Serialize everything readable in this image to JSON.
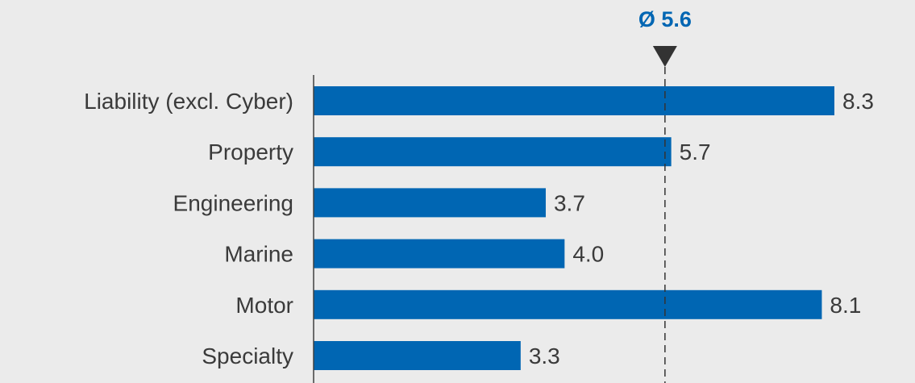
{
  "chart_data": {
    "type": "bar",
    "orientation": "horizontal",
    "categories": [
      "Liability (excl. Cyber)",
      "Property",
      "Engineering",
      "Marine",
      "Motor",
      "Specialty"
    ],
    "values": [
      8.3,
      5.7,
      3.7,
      4.0,
      8.1,
      3.3
    ],
    "value_labels": [
      "8.3",
      "5.7",
      "3.7",
      "4.0",
      "8.1",
      "3.3"
    ],
    "xlim": [
      0,
      8.3
    ],
    "average": {
      "value": 5.6,
      "label": "Ø 5.6"
    },
    "grid": false,
    "title": "",
    "xlabel": "",
    "ylabel": ""
  },
  "colors": {
    "bar": "#0066b3",
    "accent": "#0066b3",
    "marker": "#333333",
    "axis": "#404040",
    "text": "#3a3a3a",
    "background": "#ebebeb"
  },
  "icons": {
    "average_marker": "triangle-down-icon"
  }
}
